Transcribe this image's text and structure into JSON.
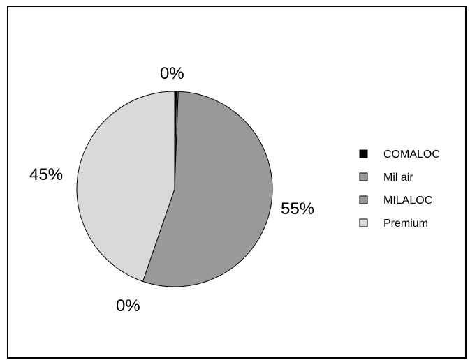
{
  "chart_data": {
    "type": "pie",
    "title": "",
    "categories": [
      "COMALOC",
      "Mil air",
      "MILALOC",
      "Premium"
    ],
    "values": [
      0.3,
      0.3,
      55,
      45
    ],
    "labels": [
      "0%",
      "",
      "55%",
      "45%"
    ],
    "extra_labels": [
      "0%"
    ],
    "colors": [
      "#000000",
      "#999999",
      "#999999",
      "#d9d9d9"
    ],
    "legend_position": "right",
    "start": "top",
    "direction": "clockwise"
  }
}
